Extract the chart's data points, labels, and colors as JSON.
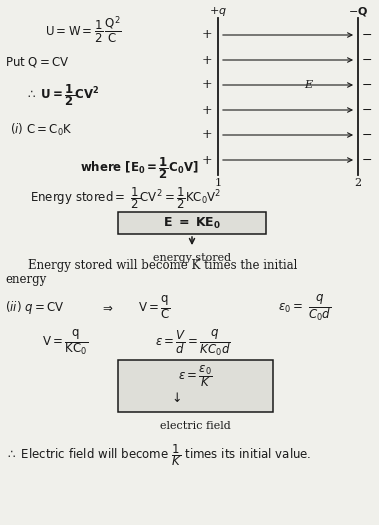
{
  "figsize": [
    3.79,
    5.25
  ],
  "dpi": 100,
  "bg_color": "#f0f0eb",
  "text_color": "#1a1a1a",
  "xlim": [
    0,
    379
  ],
  "ylim": [
    0,
    525
  ]
}
